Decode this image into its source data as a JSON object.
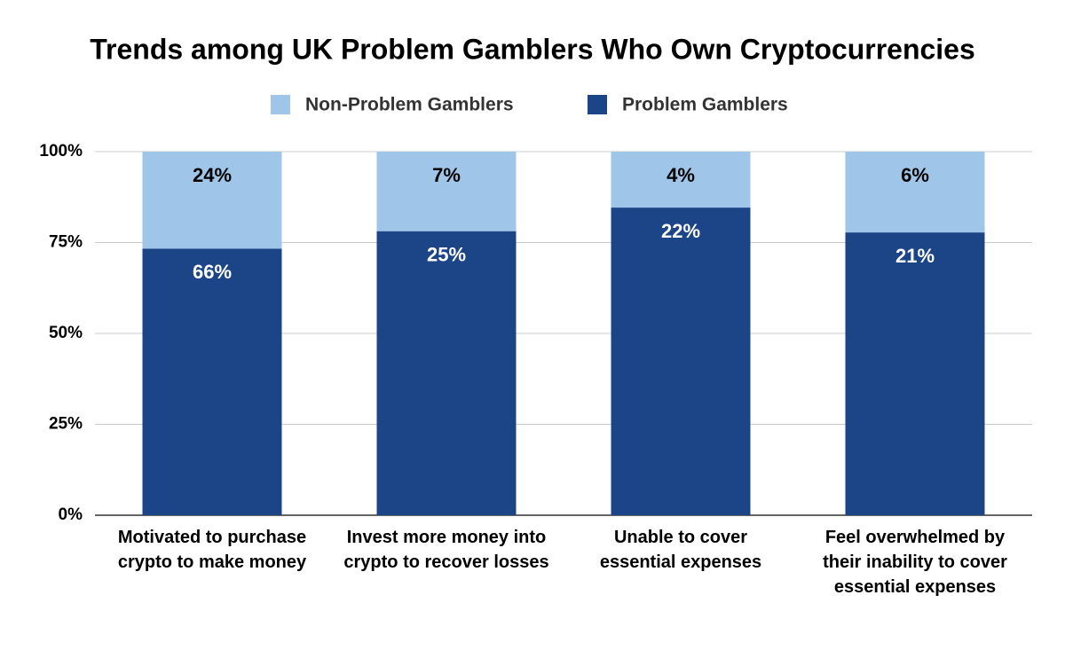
{
  "chart_data": {
    "type": "bar",
    "stack": "percent",
    "title": "Trends among UK Problem Gamblers Who Own Cryptocurrencies",
    "categories": [
      "Motivated to purchase crypto to make money",
      "Invest more money into crypto to recover losses",
      "Unable to cover essential expenses",
      "Feel overwhelmed by their inability to cover essential expenses"
    ],
    "series": [
      {
        "name": "Non-Problem Gamblers",
        "color": "#9fc5e8",
        "values": [
          24,
          7,
          4,
          6
        ],
        "value_labels": [
          "24%",
          "7%",
          "4%",
          "6%"
        ]
      },
      {
        "name": "Problem Gamblers",
        "color": "#1c4587",
        "values": [
          66,
          25,
          22,
          21
        ],
        "value_labels": [
          "66%",
          "25%",
          "22%",
          "21%"
        ]
      }
    ],
    "ylim": [
      0,
      100
    ],
    "yticks": [
      {
        "value": 0,
        "label": "0%"
      },
      {
        "value": 25,
        "label": "25%"
      },
      {
        "value": 50,
        "label": "50%"
      },
      {
        "value": 75,
        "label": "75%"
      },
      {
        "value": 100,
        "label": "100%"
      }
    ],
    "grid": true,
    "legend": "top"
  }
}
